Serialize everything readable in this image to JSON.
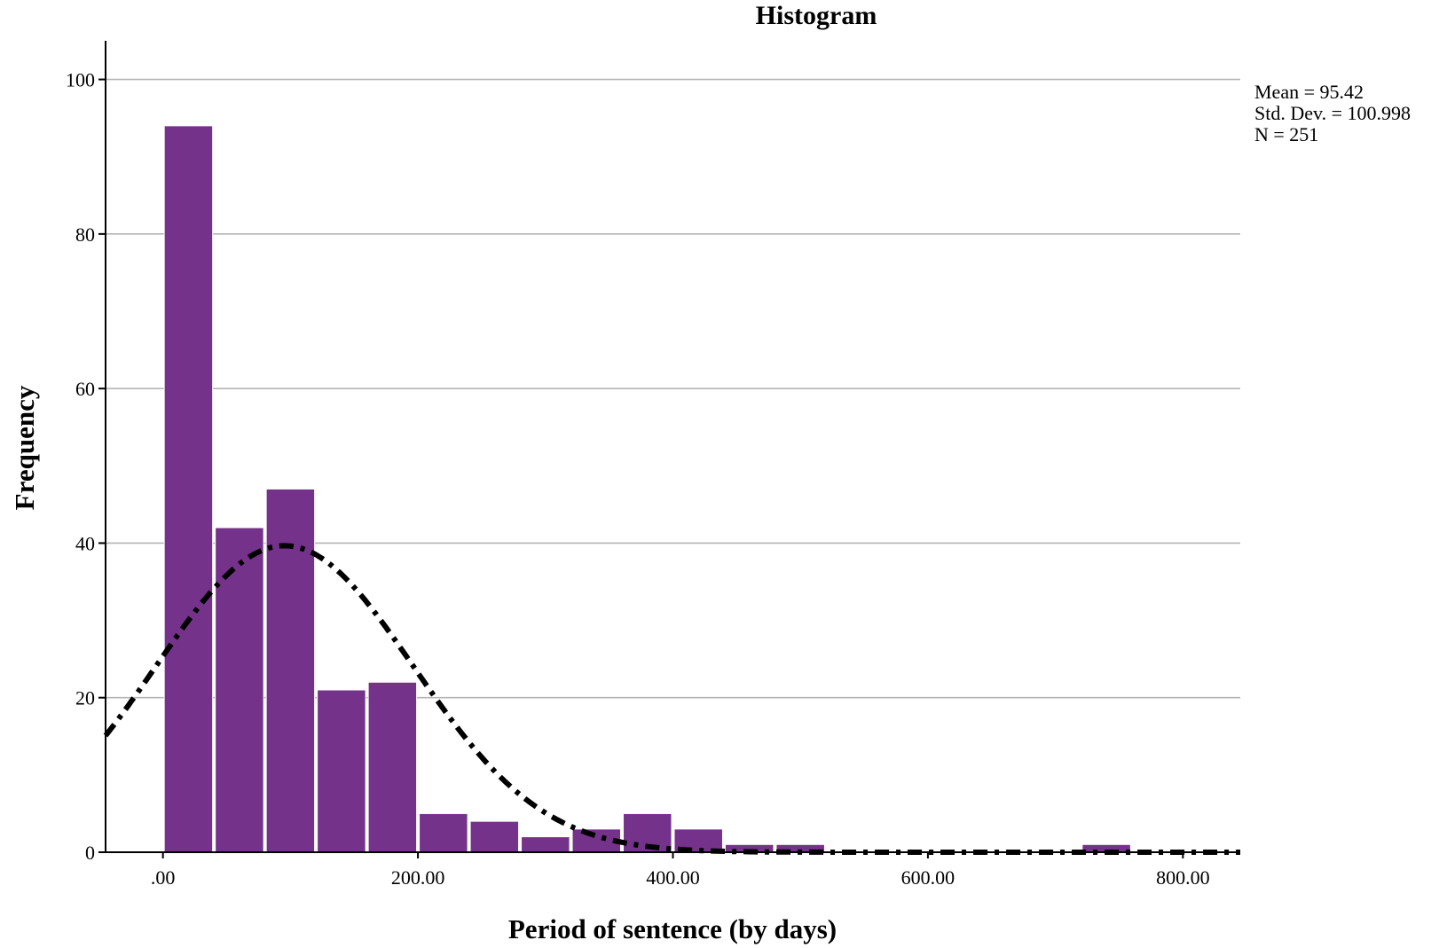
{
  "chart_data": {
    "type": "bar",
    "title": "Histogram",
    "xlabel": "Period of sentence (by days)",
    "ylabel": "Frequency",
    "bar_color": "#75328a",
    "curve_color": "#000000",
    "bin_width": 40,
    "bins": [
      {
        "start": 0,
        "end": 40,
        "count": 94
      },
      {
        "start": 40,
        "end": 80,
        "count": 42
      },
      {
        "start": 80,
        "end": 120,
        "count": 47
      },
      {
        "start": 120,
        "end": 160,
        "count": 21
      },
      {
        "start": 160,
        "end": 200,
        "count": 22
      },
      {
        "start": 200,
        "end": 240,
        "count": 5
      },
      {
        "start": 240,
        "end": 280,
        "count": 4
      },
      {
        "start": 280,
        "end": 320,
        "count": 2
      },
      {
        "start": 320,
        "end": 360,
        "count": 3
      },
      {
        "start": 360,
        "end": 400,
        "count": 5
      },
      {
        "start": 400,
        "end": 440,
        "count": 3
      },
      {
        "start": 440,
        "end": 480,
        "count": 1
      },
      {
        "start": 480,
        "end": 520,
        "count": 1
      },
      {
        "start": 520,
        "end": 560,
        "count": 0
      },
      {
        "start": 560,
        "end": 600,
        "count": 0
      },
      {
        "start": 600,
        "end": 640,
        "count": 0
      },
      {
        "start": 640,
        "end": 680,
        "count": 0
      },
      {
        "start": 680,
        "end": 720,
        "count": 0
      },
      {
        "start": 720,
        "end": 760,
        "count": 1
      }
    ],
    "x_ticks": [
      ".00",
      "200.00",
      "400.00",
      "600.00",
      "800.00"
    ],
    "x_tick_values": [
      0,
      200,
      400,
      600,
      800
    ],
    "y_ticks": [
      "0",
      "20",
      "40",
      "60",
      "80",
      "100"
    ],
    "y_tick_values": [
      0,
      20,
      40,
      60,
      80,
      100
    ],
    "xlim": [
      -45,
      845
    ],
    "ylim": [
      0,
      105
    ],
    "grid": true,
    "normal_curve": {
      "mean": 95.42,
      "std_dev": 100.998,
      "n": 251
    },
    "stats": [
      "Mean = 95.42",
      "Std. Dev. = 100.998",
      "N = 251"
    ]
  }
}
